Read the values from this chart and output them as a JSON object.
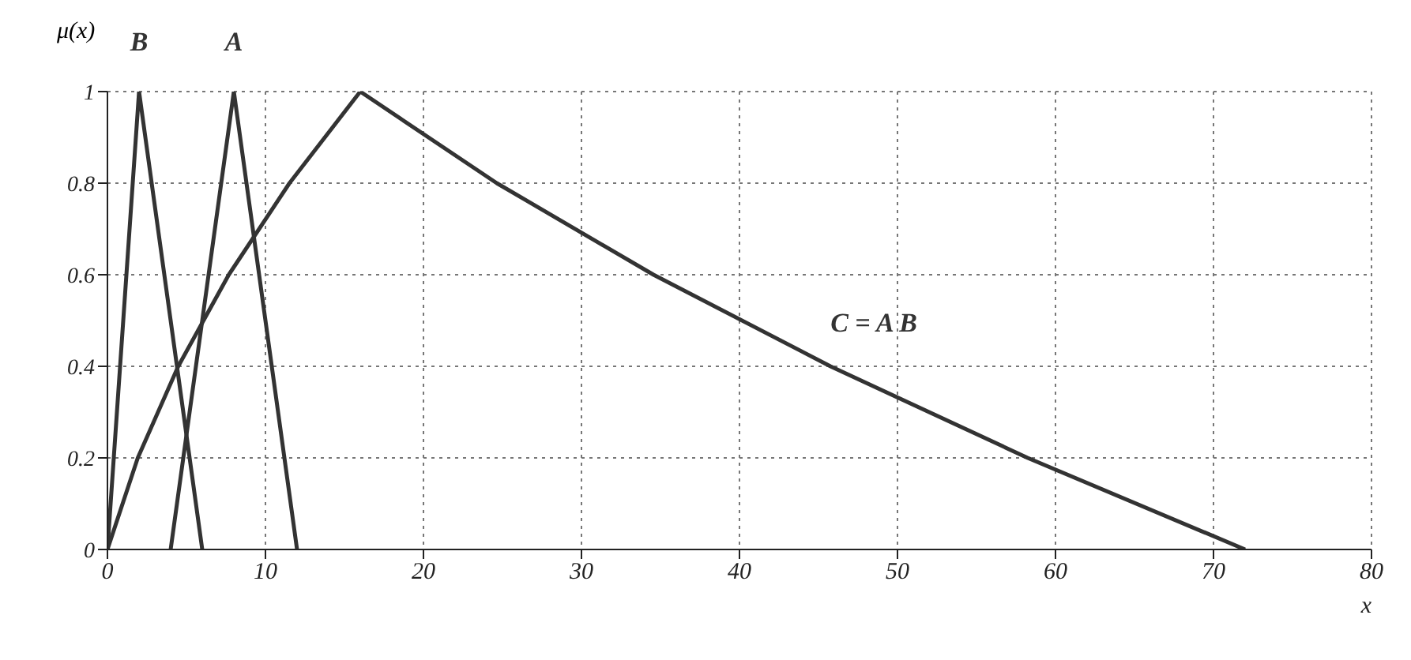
{
  "chart_data": {
    "type": "line",
    "xlabel": "x",
    "ylabel": "μ(x)",
    "xlim": [
      0,
      80
    ],
    "xticks": [
      0,
      10,
      20,
      30,
      40,
      50,
      60,
      70,
      80
    ],
    "ylim": [
      0,
      1
    ],
    "yticks": [
      0,
      0.2,
      0.4,
      0.6,
      0.8,
      1
    ],
    "grid": true,
    "legend": false,
    "marker": "none",
    "line_style": "solid",
    "series": [
      {
        "name": "B",
        "color": "#333333",
        "x": [
          0,
          2,
          6
        ],
        "values": [
          0,
          1,
          0
        ]
      },
      {
        "name": "A",
        "color": "#333333",
        "x": [
          4,
          8,
          12
        ],
        "values": [
          0,
          1,
          0
        ]
      },
      {
        "name": "C = A B",
        "color": "#333333",
        "x": [
          0,
          1.92,
          4.48,
          7.68,
          11.52,
          16,
          24.64,
          34.56,
          45.76,
          58.24,
          72
        ],
        "values": [
          0,
          0.2,
          0.4,
          0.6,
          0.8,
          1,
          0.8,
          0.6,
          0.4,
          0.2,
          0
        ]
      }
    ]
  }
}
